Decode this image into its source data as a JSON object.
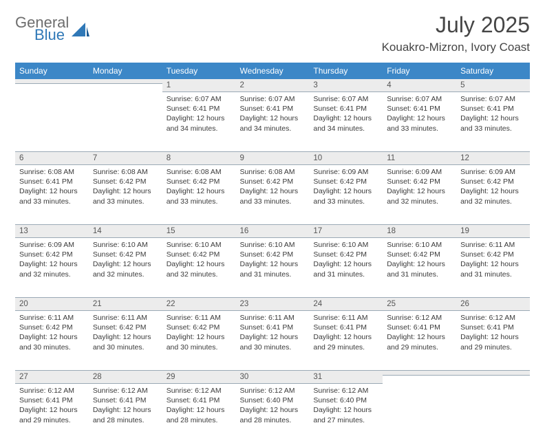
{
  "logo": {
    "word1": "General",
    "word2": "Blue"
  },
  "title": "July 2025",
  "location": "Kouakro-Mizron, Ivory Coast",
  "colors": {
    "header_bg": "#3c87c7",
    "header_text": "#ffffff",
    "daynum_bg": "#ececec",
    "border": "#9aa9b5",
    "title_text": "#454545",
    "body_text": "#3a3a3a",
    "logo_gray": "#6d6d6d",
    "logo_blue": "#2f78b7"
  },
  "dayHeaders": [
    "Sunday",
    "Monday",
    "Tuesday",
    "Wednesday",
    "Thursday",
    "Friday",
    "Saturday"
  ],
  "weeks": [
    [
      {
        "n": "",
        "sr": "",
        "ss": "",
        "dl": ""
      },
      {
        "n": "",
        "sr": "",
        "ss": "",
        "dl": ""
      },
      {
        "n": "1",
        "sr": "6:07 AM",
        "ss": "6:41 PM",
        "dl": "12 hours and 34 minutes."
      },
      {
        "n": "2",
        "sr": "6:07 AM",
        "ss": "6:41 PM",
        "dl": "12 hours and 34 minutes."
      },
      {
        "n": "3",
        "sr": "6:07 AM",
        "ss": "6:41 PM",
        "dl": "12 hours and 34 minutes."
      },
      {
        "n": "4",
        "sr": "6:07 AM",
        "ss": "6:41 PM",
        "dl": "12 hours and 33 minutes."
      },
      {
        "n": "5",
        "sr": "6:07 AM",
        "ss": "6:41 PM",
        "dl": "12 hours and 33 minutes."
      }
    ],
    [
      {
        "n": "6",
        "sr": "6:08 AM",
        "ss": "6:41 PM",
        "dl": "12 hours and 33 minutes."
      },
      {
        "n": "7",
        "sr": "6:08 AM",
        "ss": "6:42 PM",
        "dl": "12 hours and 33 minutes."
      },
      {
        "n": "8",
        "sr": "6:08 AM",
        "ss": "6:42 PM",
        "dl": "12 hours and 33 minutes."
      },
      {
        "n": "9",
        "sr": "6:08 AM",
        "ss": "6:42 PM",
        "dl": "12 hours and 33 minutes."
      },
      {
        "n": "10",
        "sr": "6:09 AM",
        "ss": "6:42 PM",
        "dl": "12 hours and 33 minutes."
      },
      {
        "n": "11",
        "sr": "6:09 AM",
        "ss": "6:42 PM",
        "dl": "12 hours and 32 minutes."
      },
      {
        "n": "12",
        "sr": "6:09 AM",
        "ss": "6:42 PM",
        "dl": "12 hours and 32 minutes."
      }
    ],
    [
      {
        "n": "13",
        "sr": "6:09 AM",
        "ss": "6:42 PM",
        "dl": "12 hours and 32 minutes."
      },
      {
        "n": "14",
        "sr": "6:10 AM",
        "ss": "6:42 PM",
        "dl": "12 hours and 32 minutes."
      },
      {
        "n": "15",
        "sr": "6:10 AM",
        "ss": "6:42 PM",
        "dl": "12 hours and 32 minutes."
      },
      {
        "n": "16",
        "sr": "6:10 AM",
        "ss": "6:42 PM",
        "dl": "12 hours and 31 minutes."
      },
      {
        "n": "17",
        "sr": "6:10 AM",
        "ss": "6:42 PM",
        "dl": "12 hours and 31 minutes."
      },
      {
        "n": "18",
        "sr": "6:10 AM",
        "ss": "6:42 PM",
        "dl": "12 hours and 31 minutes."
      },
      {
        "n": "19",
        "sr": "6:11 AM",
        "ss": "6:42 PM",
        "dl": "12 hours and 31 minutes."
      }
    ],
    [
      {
        "n": "20",
        "sr": "6:11 AM",
        "ss": "6:42 PM",
        "dl": "12 hours and 30 minutes."
      },
      {
        "n": "21",
        "sr": "6:11 AM",
        "ss": "6:42 PM",
        "dl": "12 hours and 30 minutes."
      },
      {
        "n": "22",
        "sr": "6:11 AM",
        "ss": "6:42 PM",
        "dl": "12 hours and 30 minutes."
      },
      {
        "n": "23",
        "sr": "6:11 AM",
        "ss": "6:41 PM",
        "dl": "12 hours and 30 minutes."
      },
      {
        "n": "24",
        "sr": "6:11 AM",
        "ss": "6:41 PM",
        "dl": "12 hours and 29 minutes."
      },
      {
        "n": "25",
        "sr": "6:12 AM",
        "ss": "6:41 PM",
        "dl": "12 hours and 29 minutes."
      },
      {
        "n": "26",
        "sr": "6:12 AM",
        "ss": "6:41 PM",
        "dl": "12 hours and 29 minutes."
      }
    ],
    [
      {
        "n": "27",
        "sr": "6:12 AM",
        "ss": "6:41 PM",
        "dl": "12 hours and 29 minutes."
      },
      {
        "n": "28",
        "sr": "6:12 AM",
        "ss": "6:41 PM",
        "dl": "12 hours and 28 minutes."
      },
      {
        "n": "29",
        "sr": "6:12 AM",
        "ss": "6:41 PM",
        "dl": "12 hours and 28 minutes."
      },
      {
        "n": "30",
        "sr": "6:12 AM",
        "ss": "6:40 PM",
        "dl": "12 hours and 28 minutes."
      },
      {
        "n": "31",
        "sr": "6:12 AM",
        "ss": "6:40 PM",
        "dl": "12 hours and 27 minutes."
      },
      {
        "n": "",
        "sr": "",
        "ss": "",
        "dl": ""
      },
      {
        "n": "",
        "sr": "",
        "ss": "",
        "dl": ""
      }
    ]
  ],
  "labels": {
    "sunrise": "Sunrise:",
    "sunset": "Sunset:",
    "daylight": "Daylight:"
  }
}
